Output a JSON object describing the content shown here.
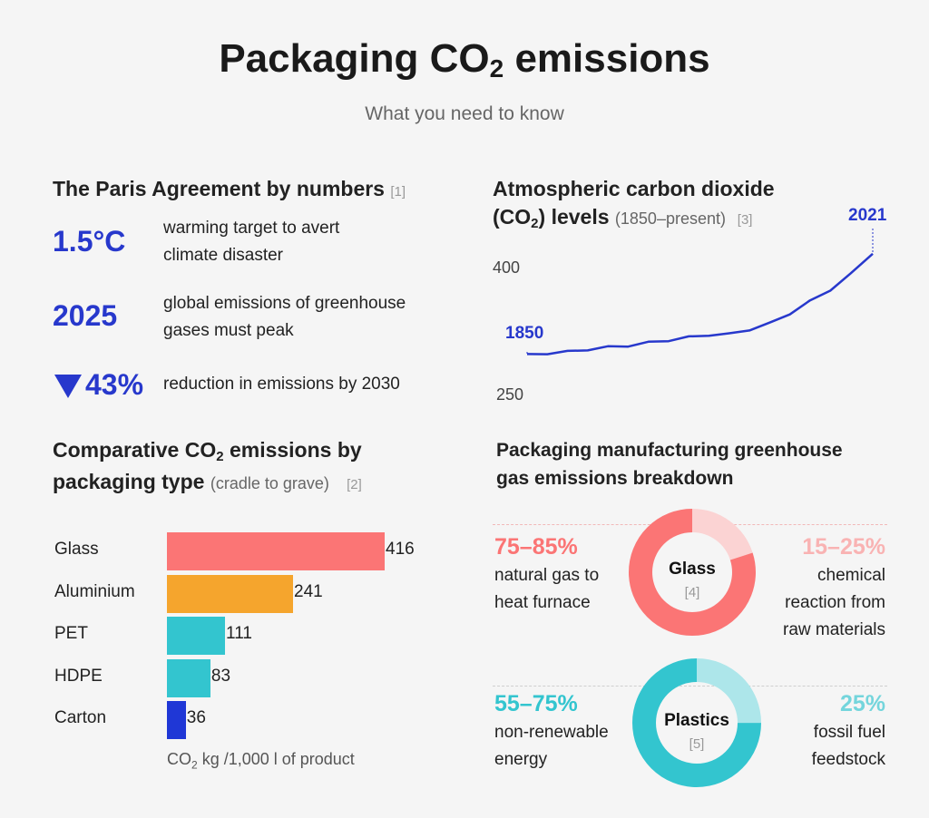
{
  "header": {
    "title_main": "Packaging CO",
    "title_sub": "2",
    "title_end": " emissions",
    "subtitle": "What you need to know"
  },
  "paris": {
    "heading": "The Paris Agreement by numbers",
    "ref": "[1]",
    "items": [
      {
        "value": "1.5°C",
        "desc1": "warming target to avert",
        "desc2": "climate disaster"
      },
      {
        "value": "2025",
        "desc1": "global emissions of greenhouse",
        "desc2": "gases must peak"
      },
      {
        "value": "43%",
        "desc1": "reduction in emissions by 2030",
        "desc2": ""
      }
    ],
    "accent": "#2738cc"
  },
  "co2": {
    "heading1": "Atmospheric carbon dioxide",
    "heading2a": "(CO",
    "heading2sub": "2",
    "heading2b": ") levels",
    "range": "(1850–present)",
    "ref": "[3]"
  },
  "comparative": {
    "heading1a": "Comparative CO",
    "heading1sub": "2",
    "heading1b": " emissions by",
    "heading2": "packaging type",
    "note": "(cradle to grave)",
    "ref": "[2]",
    "axis_a": "CO",
    "axis_sub": "2",
    "axis_b": " kg /1,000 l of product"
  },
  "breakdown": {
    "heading1": "Packaging manufacturing greenhouse",
    "heading2": "gas emissions breakdown",
    "glass": {
      "center": "Glass",
      "ref": "[4]",
      "left_pct": "75–85%",
      "left_l1": "natural gas to",
      "left_l2": "heat furnace",
      "right_pct": "15–25%",
      "right_l1": "chemical",
      "right_l2": "reaction from",
      "right_l3": "raw materials"
    },
    "plastics": {
      "center": "Plastics",
      "ref": "[5]",
      "left_pct": "55–75%",
      "left_l1": "non-renewable",
      "left_l2": "energy",
      "right_pct": "25%",
      "right_l1": "fossil fuel",
      "right_l2": "feedstock"
    }
  },
  "chart_data": [
    {
      "type": "bar",
      "orientation": "horizontal",
      "categories": [
        "Glass",
        "Aluminium",
        "PET",
        "HDPE",
        "Carton"
      ],
      "values": [
        416,
        241,
        111,
        83,
        36
      ],
      "colors": [
        "#fb7575",
        "#f5a52d",
        "#33c5cf",
        "#33c5cf",
        "#1f37d6"
      ],
      "xlabel": "CO2 kg /1,000 l of product"
    },
    {
      "type": "line",
      "series": [
        {
          "x": [
            1850,
            1860,
            1870,
            1880,
            1890,
            1900,
            1910,
            1920,
            1930,
            1940,
            1950,
            1960,
            1970,
            1980,
            1990,
            2000,
            2010,
            2021
          ],
          "y": [
            285,
            286,
            288,
            291,
            294,
            296,
            300,
            303,
            307,
            310,
            311,
            317,
            325,
            338,
            354,
            369,
            389,
            416
          ]
        }
      ],
      "y_ticks": [
        250,
        400
      ],
      "ylim": [
        250,
        430
      ],
      "x_markers": [
        1850,
        2021
      ],
      "color": "#2738cc"
    },
    {
      "type": "pie",
      "name": "Glass",
      "slices": [
        {
          "label": "natural gas to heat furnace",
          "value": 80,
          "color": "#fb7575"
        },
        {
          "label": "chemical reaction from raw materials",
          "value": 20,
          "color": "#fbd3d3"
        }
      ]
    },
    {
      "type": "pie",
      "name": "Plastics",
      "slices": [
        {
          "label": "non-renewable energy",
          "value": 75,
          "color": "#33c5cf"
        },
        {
          "label": "fossil fuel feedstock",
          "value": 25,
          "color": "#ade6ea"
        }
      ]
    }
  ]
}
